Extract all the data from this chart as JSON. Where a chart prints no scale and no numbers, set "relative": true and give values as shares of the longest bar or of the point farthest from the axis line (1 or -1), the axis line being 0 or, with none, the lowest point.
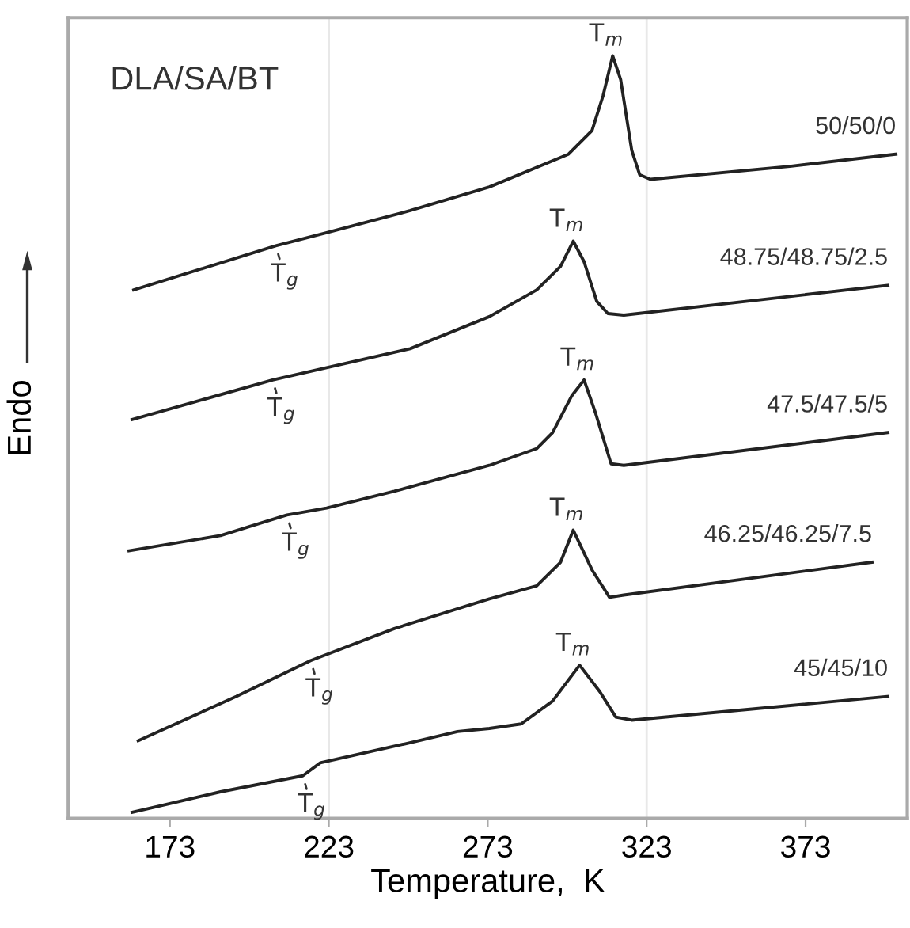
{
  "chart_data": {
    "type": "line",
    "relative": true,
    "xlabel": "Temperature,  K",
    "ylabel": "Endo",
    "xlim": [
      141,
      405
    ],
    "xticks": [
      173,
      223,
      273,
      323,
      373
    ],
    "grid": false,
    "marker": "none",
    "line_style": "solid",
    "ref_lines": [
      {
        "axis": "x",
        "value": 223,
        "color": "#e8e8e8"
      },
      {
        "axis": "x",
        "value": 323,
        "color": "#e8e8e8"
      }
    ],
    "series": [
      {
        "name": "50/50/0",
        "color": "#222222",
        "x": [
          161.6,
          206.3,
          222.3,
          248.6,
          273.5,
          298.4,
          305.8,
          309.3,
          312.3,
          314.8,
          318.3,
          320.8,
          324.2,
          368.0,
          401.4
        ],
        "values": [
          0.693,
          0.751,
          0.768,
          0.797,
          0.828,
          0.871,
          0.902,
          0.948,
          1.0,
          0.969,
          0.876,
          0.844,
          0.838,
          0.855,
          0.871
        ]
      },
      {
        "name": "48.75/48.75/2.5",
        "color": "#222222",
        "x": [
          161.1,
          205.3,
          248.6,
          273.5,
          288.4,
          295.9,
          299.9,
          303.3,
          307.3,
          310.8,
          315.8,
          398.9
        ],
        "values": [
          0.523,
          0.575,
          0.616,
          0.658,
          0.693,
          0.724,
          0.757,
          0.73,
          0.678,
          0.662,
          0.66,
          0.699
        ]
      },
      {
        "name": "47.5/47.5/5",
        "color": "#222222",
        "x": [
          160.1,
          188.9,
          198.9,
          209.8,
          222.3,
          243.6,
          273.5,
          288.4,
          293.4,
          299.4,
          303.3,
          306.8,
          311.8,
          315.8,
          398.9
        ],
        "values": [
          0.351,
          0.371,
          0.384,
          0.398,
          0.407,
          0.429,
          0.463,
          0.485,
          0.506,
          0.554,
          0.575,
          0.533,
          0.465,
          0.463,
          0.506
        ]
      },
      {
        "name": "46.25/46.25/7.5",
        "color": "#222222",
        "x": [
          163.0,
          193.9,
          217.3,
          243.6,
          273.5,
          288.4,
          295.9,
          299.9,
          305.8,
          311.3,
          315.8,
          393.9
        ],
        "values": [
          0.102,
          0.16,
          0.207,
          0.249,
          0.288,
          0.305,
          0.336,
          0.378,
          0.326,
          0.29,
          0.293,
          0.336
        ]
      },
      {
        "name": "45/45/10",
        "color": "#222222",
        "x": [
          161.1,
          188.9,
          214.8,
          220.3,
          247.1,
          263.5,
          273.5,
          283.5,
          293.4,
          301.9,
          308.3,
          313.3,
          318.3,
          398.9
        ],
        "values": [
          0.008,
          0.035,
          0.056,
          0.073,
          0.098,
          0.114,
          0.118,
          0.124,
          0.154,
          0.201,
          0.166,
          0.133,
          0.129,
          0.16
        ]
      }
    ],
    "annotations": [
      "DLA/SA/BT",
      {
        "text": "T$_{m}$",
        "x": 312.3,
        "y": 1.0
      },
      {
        "text": "T$_{g}$",
        "x": 206.3,
        "y": 0.751
      },
      {
        "text": "T$_{m}$",
        "x": 299.9,
        "y": 0.757
      },
      {
        "text": "T$_{g}$",
        "x": 205.3,
        "y": 0.575
      },
      {
        "text": "T$_{m}$",
        "x": 303.3,
        "y": 0.575
      },
      {
        "text": "T$_{g}$",
        "x": 209.8,
        "y": 0.398
      },
      {
        "text": "T$_{m}$",
        "x": 299.9,
        "y": 0.378
      },
      {
        "text": "T$_{g}$",
        "x": 217.3,
        "y": 0.207
      },
      {
        "text": "T$_{m}$",
        "x": 301.9,
        "y": 0.201
      },
      {
        "text": "T$_{g}$",
        "x": 214.8,
        "y": 0.056
      }
    ]
  }
}
